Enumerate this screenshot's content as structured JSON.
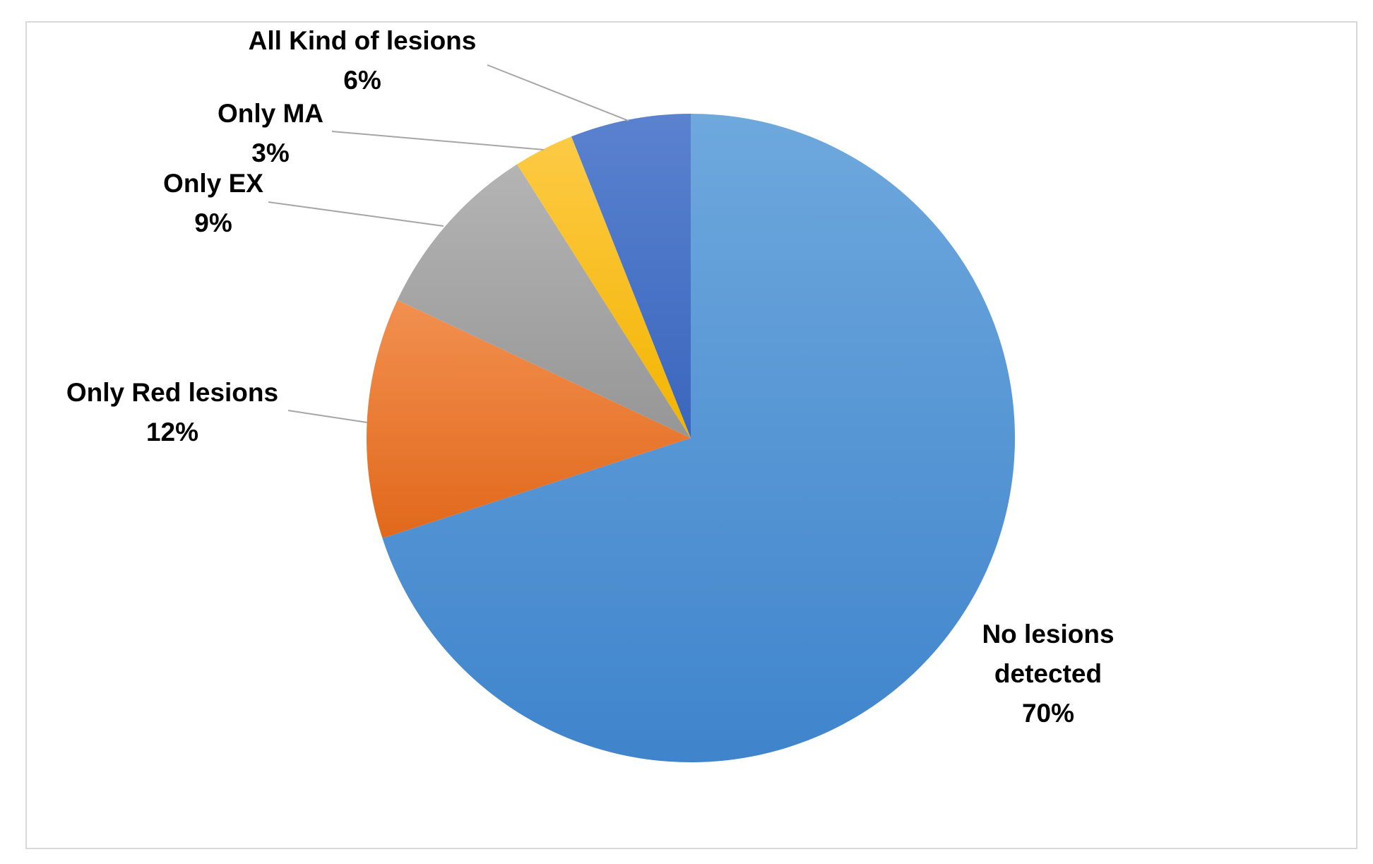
{
  "chart_data": {
    "type": "pie",
    "title": "",
    "start_angle_deg": 0,
    "direction": "clockwise",
    "slices": [
      {
        "label": "No lesions detected",
        "label_lines": [
          "No lesions",
          "detected"
        ],
        "value": 70,
        "value_label": "70%",
        "color": "#4f92d6",
        "color_light": "#6ea8dd",
        "color_dark": "#3f84cc"
      },
      {
        "label": "Only Red lesions",
        "label_lines": [
          "Only Red lesions"
        ],
        "value": 12,
        "value_label": "12%",
        "color": "#ef7a2c",
        "color_light": "#f29050",
        "color_dark": "#e1681b"
      },
      {
        "label": "Only EX",
        "label_lines": [
          "Only EX"
        ],
        "value": 9,
        "value_label": "9%",
        "color": "#a6a6a6",
        "color_light": "#b4b4b4",
        "color_dark": "#969696"
      },
      {
        "label": "Only MA",
        "label_lines": [
          "Only MA"
        ],
        "value": 3,
        "value_label": "3%",
        "color": "#fcbf1e",
        "color_light": "#fdca45",
        "color_dark": "#f3b400"
      },
      {
        "label": "All Kind of lesions",
        "label_lines": [
          "All Kind of lesions"
        ],
        "value": 6,
        "value_label": "6%",
        "color": "#4472c4",
        "color_light": "#5a82cf",
        "color_dark": "#3a66bd"
      }
    ],
    "legend": "none",
    "data_labels": "outside with leader lines"
  }
}
